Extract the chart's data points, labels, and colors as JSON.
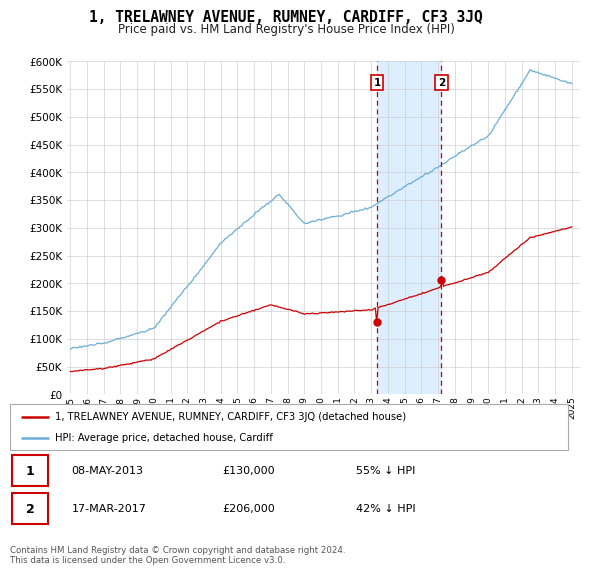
{
  "title": "1, TRELAWNEY AVENUE, RUMNEY, CARDIFF, CF3 3JQ",
  "subtitle": "Price paid vs. HM Land Registry's House Price Index (HPI)",
  "legend_line1": "1, TRELAWNEY AVENUE, RUMNEY, CARDIFF, CF3 3JQ (detached house)",
  "legend_line2": "HPI: Average price, detached house, Cardiff",
  "transaction1_date": "08-MAY-2013",
  "transaction1_price": "£130,000",
  "transaction1_hpi": "55% ↓ HPI",
  "transaction1_year": 2013.36,
  "transaction1_value": 130000,
  "transaction2_date": "17-MAR-2017",
  "transaction2_price": "£206,000",
  "transaction2_hpi": "42% ↓ HPI",
  "transaction2_year": 2017.21,
  "transaction2_value": 206000,
  "footer": "Contains HM Land Registry data © Crown copyright and database right 2024.\nThis data is licensed under the Open Government Licence v3.0.",
  "hpi_color": "#6baed6",
  "property_color": "#cc0000",
  "highlight_color": "#ddeeff",
  "vline_color": "#cc0000",
  "ylim_min": 0,
  "ylim_max": 600000,
  "xlim_min": 1994.8,
  "xlim_max": 2025.5,
  "background_color": "#ffffff"
}
